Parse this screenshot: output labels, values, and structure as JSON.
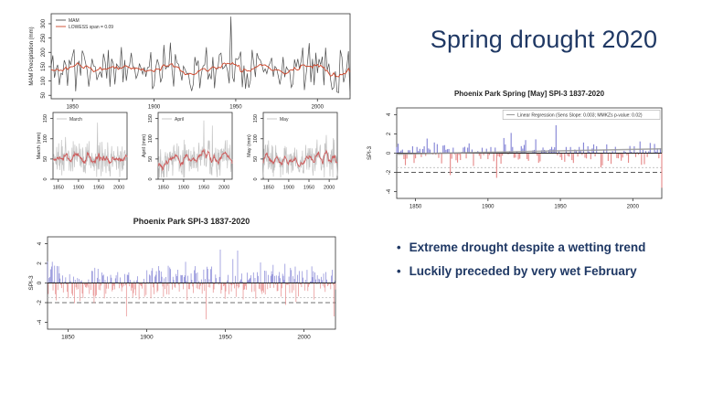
{
  "slide": {
    "title": "Spring drought 2020",
    "bullets": [
      "Extreme drought despite a wetting trend",
      "Luckily preceded by very wet February"
    ],
    "colors": {
      "navy": "#1f3864",
      "background": "#ffffff"
    }
  },
  "chart_data": [
    {
      "id": "mam",
      "type": "line",
      "title": "",
      "ylabel": "MAM Precipitation (mm)",
      "legend": [
        {
          "label": "MAM",
          "color": "#4d4d4d"
        },
        {
          "label": "LOWESS span = 0.09",
          "color": "#cc4125"
        }
      ],
      "line_color": "#4d4d4d",
      "smooth_color": "#cc4125",
      "x": {
        "min": 1837,
        "max": 2020,
        "ticks": [
          1850,
          1900,
          1950,
          2000
        ]
      },
      "y": {
        "min": 38,
        "max": 335,
        "ticks": [
          50,
          100,
          150,
          200,
          250,
          300
        ]
      },
      "series_spec": {
        "seed": 11,
        "n": 184,
        "mean": 148,
        "sd": 52,
        "clip": [
          45,
          325
        ],
        "smooth_window": 11,
        "anchors": {
          "1947": 325,
          "2020": 48
        }
      }
    },
    {
      "id": "march",
      "type": "line",
      "title": "",
      "ylabel": "March (mm)",
      "legend": [
        {
          "label": "March",
          "color": "#c3c3c3"
        }
      ],
      "line_color": "#c3c3c3",
      "smooth_color": "#cd5c5c",
      "x": {
        "min": 1837,
        "max": 2020,
        "ticks": [
          1850,
          1900,
          1950,
          2000
        ]
      },
      "y": {
        "min": 0,
        "max": 165,
        "ticks": [
          0,
          50,
          100,
          150
        ]
      },
      "series_spec": {
        "seed": 21,
        "n": 184,
        "mean": 50,
        "sd": 30,
        "clip": [
          4,
          150
        ],
        "smooth_window": 9,
        "anchors": {
          "1947": 140
        }
      }
    },
    {
      "id": "april",
      "type": "line",
      "title": "",
      "ylabel": "April (mm)",
      "legend": [
        {
          "label": "April",
          "color": "#c3c3c3"
        }
      ],
      "line_color": "#c3c3c3",
      "smooth_color": "#cd5c5c",
      "x": {
        "min": 1837,
        "max": 2020,
        "ticks": [
          1850,
          1900,
          1950,
          2000
        ]
      },
      "y": {
        "min": 0,
        "max": 165,
        "ticks": [
          0,
          50,
          100,
          150
        ]
      },
      "series_spec": {
        "seed": 22,
        "n": 184,
        "mean": 50,
        "sd": 30,
        "clip": [
          4,
          150
        ],
        "smooth_window": 9,
        "anchors": {
          "1950": 145
        }
      }
    },
    {
      "id": "may",
      "type": "line",
      "title": "",
      "ylabel": "May (mm)",
      "legend": [
        {
          "label": "May",
          "color": "#c3c3c3"
        }
      ],
      "line_color": "#c3c3c3",
      "smooth_color": "#cd5c5c",
      "x": {
        "min": 1837,
        "max": 2020,
        "ticks": [
          1850,
          1900,
          1950,
          2000
        ]
      },
      "y": {
        "min": 0,
        "max": 165,
        "ticks": [
          0,
          50,
          100,
          150
        ]
      },
      "series_spec": {
        "seed": 23,
        "n": 184,
        "mean": 50,
        "sd": 30,
        "clip": [
          4,
          150
        ],
        "smooth_window": 9,
        "anchors": {
          "2020": 8
        }
      }
    },
    {
      "id": "spi_all",
      "type": "bar",
      "title": "Phoenix Park SPI-3 1837-2020",
      "ylabel": "SPI-3",
      "x": {
        "min": 1837,
        "max": 2020,
        "ticks": [
          1850,
          1900,
          1950,
          2000
        ]
      },
      "y": {
        "min": -4.7,
        "max": 4.7,
        "ticks": [
          -4,
          -2,
          0,
          2,
          4
        ]
      },
      "bar_colors": {
        "positive": "#8585d6",
        "negative": "#e68a8a"
      },
      "thresholds": [
        {
          "value": -1.5,
          "color": "#bbbbbb",
          "dash": "2 2"
        },
        {
          "value": -2,
          "color": "#444444",
          "dash": "5 3"
        }
      ],
      "series_spec": {
        "seed": 31,
        "n": 366,
        "scale": 1.7,
        "clip": [
          -3.7,
          3.4
        ],
        "anchors": {
          "1887": -3.4,
          "1938": -3.7,
          "1947": 3.4,
          "1958": 3.3,
          "2019": -3.4
        }
      }
    },
    {
      "id": "spi_may",
      "type": "bar",
      "title": "Phoenix Park Spring [May] SPI-3 1837-2020",
      "ylabel": "SPI-3",
      "legend": [
        {
          "label": "Linear Regression (Sens Slope: 0.003; MMKZs p-value: 0.02)",
          "color": "#999999"
        }
      ],
      "x": {
        "min": 1837,
        "max": 2020,
        "ticks": [
          1850,
          1900,
          1950,
          2000
        ]
      },
      "y": {
        "min": -4.7,
        "max": 4.7,
        "ticks": [
          -4,
          -2,
          0,
          2,
          4
        ]
      },
      "bar_colors": {
        "positive": "#8585d6",
        "negative": "#e68a8a"
      },
      "thresholds": [
        {
          "value": -1.5,
          "color": "#bbbbbb",
          "dash": "2 2"
        },
        {
          "value": -2,
          "color": "#444444",
          "dash": "5 3"
        }
      ],
      "regression": {
        "y_start": -0.1,
        "y_end": 0.45,
        "color": "#999999"
      },
      "series_spec": {
        "seed": 41,
        "n": 184,
        "scale": 1.3,
        "clip": [
          -3.6,
          2.9
        ],
        "anchors": {
          "1947": 2.9,
          "1916": 2.1,
          "2020": -3.6
        }
      }
    }
  ]
}
